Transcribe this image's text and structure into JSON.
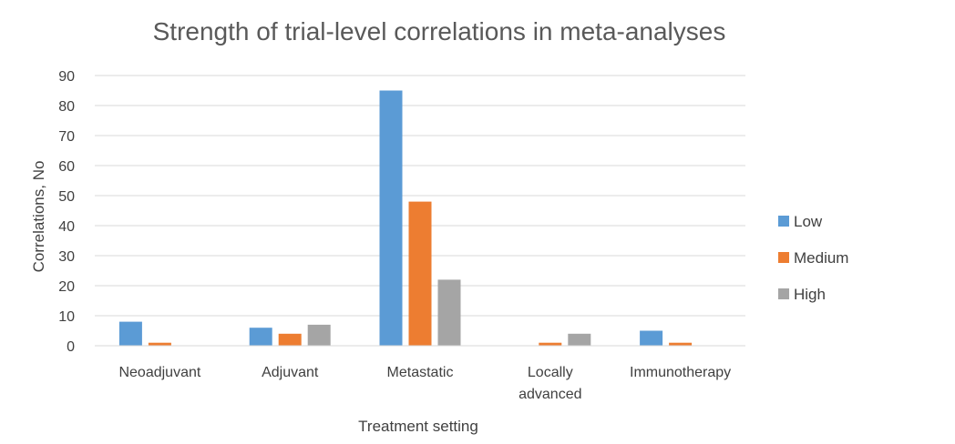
{
  "chart_data": {
    "type": "bar",
    "title": "Strength of trial-level correlations in meta-analyses",
    "xlabel": "Treatment setting",
    "ylabel": "Correlations, No",
    "ylim": [
      0,
      90
    ],
    "yticks": [
      0,
      10,
      20,
      30,
      40,
      50,
      60,
      70,
      80,
      90
    ],
    "grid": true,
    "legend_position": "right",
    "categories": [
      "Neoadjuvant",
      "Adjuvant",
      "Metastatic",
      "Locally advanced",
      "Immunotherapy"
    ],
    "series": [
      {
        "name": "Low",
        "color": "#5B9BD5",
        "values": [
          8,
          6,
          85,
          0,
          5
        ]
      },
      {
        "name": "Medium",
        "color": "#ED7D31",
        "values": [
          1,
          4,
          48,
          1,
          1
        ]
      },
      {
        "name": "High",
        "color": "#A5A5A5",
        "values": [
          0,
          7,
          22,
          4,
          0
        ]
      }
    ]
  }
}
